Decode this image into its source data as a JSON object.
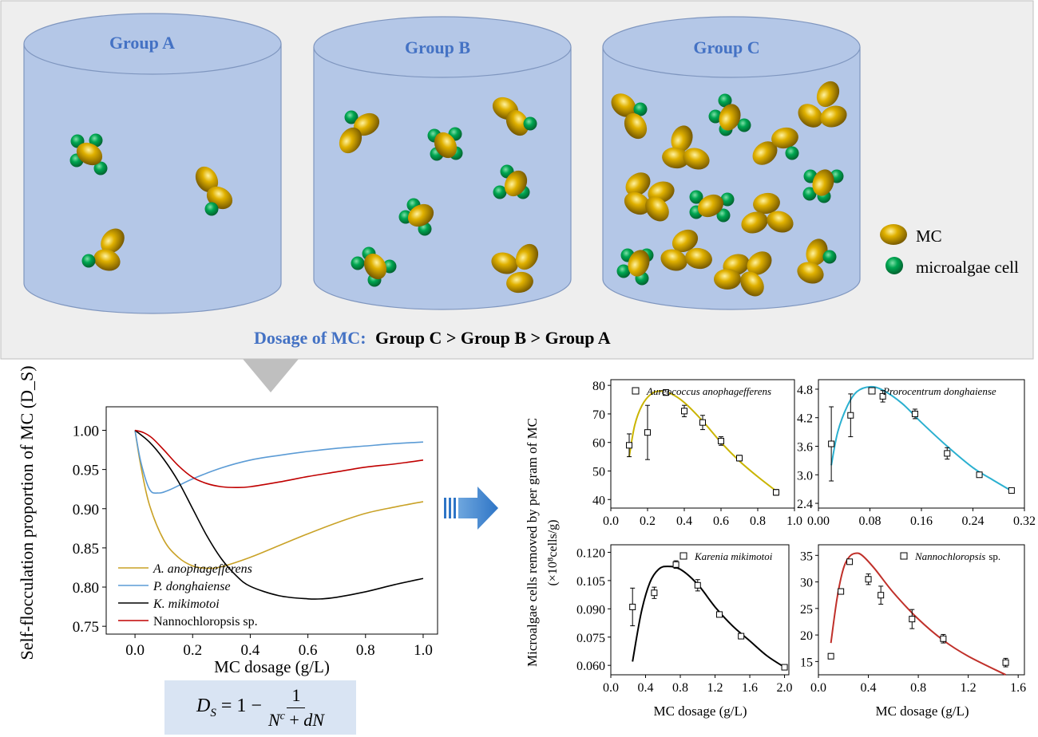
{
  "groups": [
    {
      "label": "Group A"
    },
    {
      "label": "Group B"
    },
    {
      "label": "Group C"
    }
  ],
  "legend": {
    "mc": "MC",
    "microalgae": "microalgae cell"
  },
  "dosage_line": {
    "prefix": "Dosage of MC:",
    "order": "Group C > Group B > Group A"
  },
  "colors": {
    "group_label": "#4472c4",
    "cylinder": "#b4c7e7",
    "mc": "#c9a000",
    "cell": "#00a651",
    "panel_bg": "#eeeeee",
    "arrow": "#2e75c6"
  },
  "chart_data": [
    {
      "type": "line",
      "ylabel": "Self-flocculation proportion of MC (D_S)",
      "xlabel": "MC dosage (g/L)",
      "xlim": [
        -0.1,
        1.05
      ],
      "ylim": [
        0.74,
        1.03
      ],
      "x_ticks": [
        "0.0",
        "0.2",
        "0.4",
        "0.6",
        "0.8",
        "1.0"
      ],
      "y_ticks": [
        "0.75",
        "0.80",
        "0.85",
        "0.90",
        "0.95",
        "1.00"
      ],
      "legend_position": "bottom-left",
      "series": [
        {
          "name": "A. anophagefferens",
          "color": "#c9a227",
          "x": [
            0,
            0.02,
            0.05,
            0.1,
            0.15,
            0.2,
            0.25,
            0.3,
            0.4,
            0.5,
            0.6,
            0.7,
            0.8,
            0.9,
            1.0
          ],
          "y": [
            1.0,
            0.955,
            0.905,
            0.86,
            0.838,
            0.827,
            0.824,
            0.826,
            0.838,
            0.853,
            0.868,
            0.882,
            0.894,
            0.902,
            0.909
          ]
        },
        {
          "name": "P. donghaiense",
          "color": "#5b9bd5",
          "x": [
            0,
            0.02,
            0.05,
            0.08,
            0.12,
            0.2,
            0.3,
            0.4,
            0.5,
            0.6,
            0.7,
            0.8,
            0.9,
            1.0
          ],
          "y": [
            1.0,
            0.96,
            0.925,
            0.92,
            0.924,
            0.938,
            0.952,
            0.962,
            0.968,
            0.973,
            0.977,
            0.98,
            0.983,
            0.985
          ]
        },
        {
          "name": "K. mikimotoi",
          "color": "#000000",
          "x": [
            0,
            0.05,
            0.1,
            0.15,
            0.2,
            0.25,
            0.3,
            0.35,
            0.4,
            0.5,
            0.6,
            0.65,
            0.7,
            0.8,
            0.9,
            1.0
          ],
          "y": [
            1.0,
            0.985,
            0.963,
            0.935,
            0.9,
            0.865,
            0.836,
            0.815,
            0.801,
            0.789,
            0.785,
            0.785,
            0.787,
            0.794,
            0.803,
            0.811
          ]
        },
        {
          "name": "Nannochloropsis sp.",
          "color": "#c00000",
          "x": [
            0,
            0.03,
            0.06,
            0.1,
            0.15,
            0.2,
            0.25,
            0.3,
            0.35,
            0.4,
            0.5,
            0.6,
            0.7,
            0.8,
            0.9,
            1.0
          ],
          "y": [
            1.0,
            0.997,
            0.99,
            0.975,
            0.955,
            0.94,
            0.932,
            0.928,
            0.927,
            0.928,
            0.934,
            0.941,
            0.947,
            0.953,
            0.957,
            0.962
          ]
        }
      ]
    },
    {
      "type": "scatter",
      "series_name": "Aureococcus anophagefferens",
      "color": "#c9b400",
      "xlim": [
        0,
        1.0
      ],
      "ylim": [
        37,
        82
      ],
      "x_ticks": [
        "0.0",
        "0.2",
        "0.4",
        "0.6",
        "0.8",
        "1.0"
      ],
      "y_ticks": [
        "40",
        "50",
        "60",
        "70",
        "80"
      ],
      "points": [
        {
          "x": 0.1,
          "y": 59,
          "err": 4
        },
        {
          "x": 0.2,
          "y": 63.5,
          "err": 9.5
        },
        {
          "x": 0.3,
          "y": 77.5,
          "err": 1
        },
        {
          "x": 0.4,
          "y": 71,
          "err": 2
        },
        {
          "x": 0.5,
          "y": 67,
          "err": 2.5
        },
        {
          "x": 0.6,
          "y": 60.5,
          "err": 1.5
        },
        {
          "x": 0.7,
          "y": 54.5,
          "err": 1
        },
        {
          "x": 0.9,
          "y": 42.5,
          "err": 1
        }
      ],
      "fit": {
        "x": [
          0.1,
          0.13,
          0.17,
          0.22,
          0.27,
          0.33,
          0.4,
          0.5,
          0.6,
          0.7,
          0.8,
          0.9
        ],
        "y": [
          55,
          66,
          73,
          77,
          78,
          77,
          74,
          67.5,
          60,
          53.5,
          48,
          43
        ]
      }
    },
    {
      "type": "scatter",
      "series_name": "Prorocentrum donghaiense",
      "color": "#2bb0d0",
      "xlim": [
        0,
        0.32
      ],
      "ylim": [
        2.3,
        5.0
      ],
      "x_ticks": [
        "0.00",
        "0.08",
        "0.16",
        "0.24",
        "0.32"
      ],
      "y_ticks": [
        "2.4",
        "3.0",
        "3.6",
        "4.2",
        "4.8"
      ],
      "points": [
        {
          "x": 0.02,
          "y": 3.65,
          "err": 0.78
        },
        {
          "x": 0.05,
          "y": 4.25,
          "err": 0.45
        },
        {
          "x": 0.1,
          "y": 4.65,
          "err": 0.12
        },
        {
          "x": 0.15,
          "y": 4.28,
          "err": 0.1
        },
        {
          "x": 0.2,
          "y": 3.45,
          "err": 0.12
        },
        {
          "x": 0.25,
          "y": 3.0,
          "err": 0.05
        },
        {
          "x": 0.3,
          "y": 2.67,
          "err": 0.04
        }
      ],
      "fit": {
        "x": [
          0.02,
          0.03,
          0.045,
          0.06,
          0.08,
          0.1,
          0.13,
          0.16,
          0.2,
          0.24,
          0.27,
          0.3
        ],
        "y": [
          3.2,
          3.9,
          4.45,
          4.75,
          4.85,
          4.78,
          4.5,
          4.1,
          3.6,
          3.15,
          2.9,
          2.66
        ]
      }
    },
    {
      "type": "scatter",
      "series_name": "Karenia mikimotoi",
      "color": "#000000",
      "xlim": [
        0,
        2.05
      ],
      "ylim": [
        0.055,
        0.124
      ],
      "x_ticks": [
        "0.0",
        "0.4",
        "0.8",
        "1.2",
        "1.6",
        "2.0"
      ],
      "y_ticks": [
        "0.060",
        "0.075",
        "0.090",
        "0.105",
        "0.120"
      ],
      "points": [
        {
          "x": 0.25,
          "y": 0.091,
          "err": 0.01
        },
        {
          "x": 0.5,
          "y": 0.0985,
          "err": 0.003
        },
        {
          "x": 0.75,
          "y": 0.1135,
          "err": 0.002
        },
        {
          "x": 1.0,
          "y": 0.1025,
          "err": 0.003
        },
        {
          "x": 1.25,
          "y": 0.087,
          "err": 0.001
        },
        {
          "x": 1.5,
          "y": 0.0755,
          "err": 0.001
        },
        {
          "x": 2.0,
          "y": 0.059,
          "err": 0.001
        }
      ],
      "fit": {
        "x": [
          0.25,
          0.35,
          0.45,
          0.55,
          0.65,
          0.8,
          1.0,
          1.2,
          1.4,
          1.6,
          1.8,
          2.0
        ],
        "y": [
          0.062,
          0.088,
          0.104,
          0.111,
          0.1125,
          0.111,
          0.103,
          0.091,
          0.081,
          0.073,
          0.065,
          0.059
        ]
      }
    },
    {
      "type": "scatter",
      "series_name": "Nannochloropsis",
      "series_suffix": "sp.",
      "color": "#c0302a",
      "xlim": [
        0,
        1.65
      ],
      "ylim": [
        12.5,
        37
      ],
      "x_ticks": [
        "0.0",
        "0.4",
        "0.8",
        "1.2",
        "1.6"
      ],
      "y_ticks": [
        "15",
        "20",
        "25",
        "30",
        "35"
      ],
      "points": [
        {
          "x": 0.1,
          "y": 16,
          "err": 0.5
        },
        {
          "x": 0.18,
          "y": 28.2,
          "err": 0.5
        },
        {
          "x": 0.25,
          "y": 33.8,
          "err": 0.4
        },
        {
          "x": 0.4,
          "y": 30.5,
          "err": 1
        },
        {
          "x": 0.5,
          "y": 27.5,
          "err": 1.7
        },
        {
          "x": 0.75,
          "y": 23,
          "err": 1.8
        },
        {
          "x": 1.0,
          "y": 19.3,
          "err": 0.8
        },
        {
          "x": 1.5,
          "y": 14.8,
          "err": 0.8
        }
      ],
      "fit": {
        "x": [
          0.1,
          0.15,
          0.2,
          0.25,
          0.3,
          0.35,
          0.45,
          0.6,
          0.8,
          1.0,
          1.2,
          1.5
        ],
        "y": [
          18.5,
          27,
          32.5,
          34.8,
          35.4,
          35,
          32.5,
          28,
          23,
          19,
          16,
          12.5
        ]
      }
    }
  ],
  "small_axes": {
    "ylabel_main": "Microalgae cells removed by per gram of MC",
    "ylabel_unit": "(×10⁸cells/g)",
    "xlabel_left": "MC dosage (g/L)",
    "xlabel_right": "MC dosage (g/L)"
  },
  "formula": {
    "lhs": "D_S = 1 − ",
    "numerator": "1",
    "denominator": "N^c + dN"
  }
}
